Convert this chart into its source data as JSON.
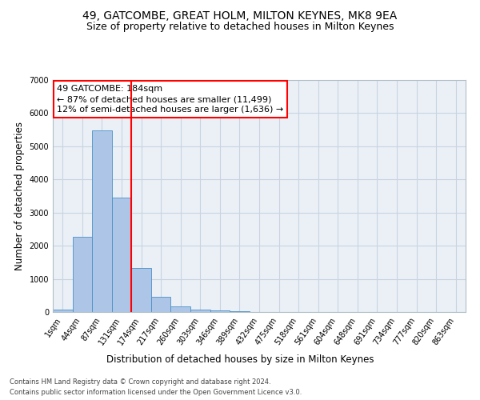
{
  "title": "49, GATCOMBE, GREAT HOLM, MILTON KEYNES, MK8 9EA",
  "subtitle": "Size of property relative to detached houses in Milton Keynes",
  "xlabel": "Distribution of detached houses by size in Milton Keynes",
  "ylabel": "Number of detached properties",
  "footnote1": "Contains HM Land Registry data © Crown copyright and database right 2024.",
  "footnote2": "Contains public sector information licensed under the Open Government Licence v3.0.",
  "bar_labels": [
    "1sqm",
    "44sqm",
    "87sqm",
    "131sqm",
    "174sqm",
    "217sqm",
    "260sqm",
    "303sqm",
    "346sqm",
    "389sqm",
    "432sqm",
    "475sqm",
    "518sqm",
    "561sqm",
    "604sqm",
    "648sqm",
    "691sqm",
    "734sqm",
    "777sqm",
    "820sqm",
    "863sqm"
  ],
  "bar_values": [
    80,
    2280,
    5470,
    3450,
    1320,
    470,
    160,
    80,
    50,
    30,
    0,
    0,
    0,
    0,
    0,
    0,
    0,
    0,
    0,
    0,
    0
  ],
  "bar_color": "#adc6e8",
  "bar_edge_color": "#4a90c4",
  "annotation_line1": "49 GATCOMBE: 184sqm",
  "annotation_line2": "← 87% of detached houses are smaller (11,499)",
  "annotation_line3": "12% of semi-detached houses are larger (1,636) →",
  "vline_index": 4,
  "vline_color": "red",
  "ylim": [
    0,
    7000
  ],
  "yticks": [
    0,
    1000,
    2000,
    3000,
    4000,
    5000,
    6000,
    7000
  ],
  "grid_color": "#c8d4e0",
  "bg_color": "#eaf0f6",
  "title_fontsize": 10,
  "subtitle_fontsize": 9,
  "axis_label_fontsize": 8.5,
  "tick_fontsize": 7,
  "annotation_fontsize": 8,
  "footnote_fontsize": 6
}
